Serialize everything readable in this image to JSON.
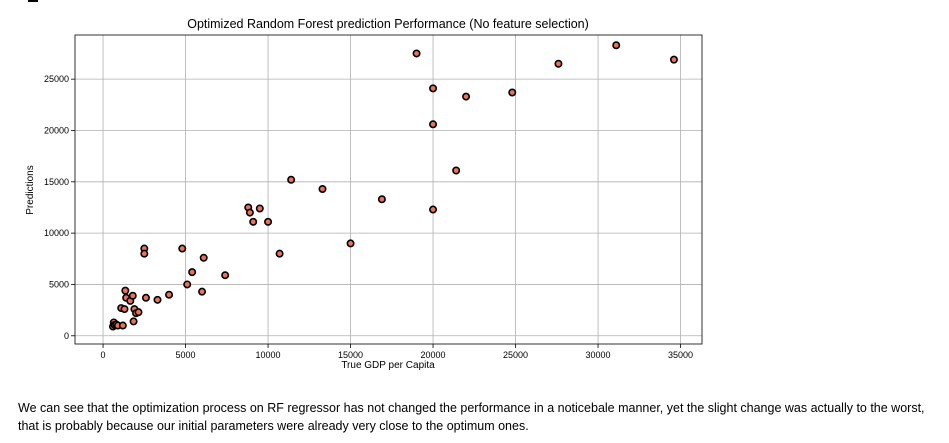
{
  "chart_data": {
    "type": "scatter",
    "title": "Optimized Random Forest prediction Performance (No feature selection)",
    "xlabel": "True GDP per Capita",
    "ylabel": "Predictions",
    "xlim": [
      -1700,
      36300
    ],
    "ylim": [
      -800,
      29300
    ],
    "xticks": [
      0,
      5000,
      10000,
      15000,
      20000,
      25000,
      30000,
      35000
    ],
    "yticks": [
      0,
      5000,
      10000,
      15000,
      20000,
      25000
    ],
    "grid": true,
    "marker_face": "#e8735a",
    "marker_edge": "#000000",
    "points": [
      {
        "x": 600,
        "y": 900
      },
      {
        "x": 650,
        "y": 1300
      },
      {
        "x": 700,
        "y": 1050
      },
      {
        "x": 800,
        "y": 1100
      },
      {
        "x": 900,
        "y": 1000
      },
      {
        "x": 1100,
        "y": 2700
      },
      {
        "x": 1200,
        "y": 1000
      },
      {
        "x": 1300,
        "y": 2600
      },
      {
        "x": 1350,
        "y": 4400
      },
      {
        "x": 1400,
        "y": 3700
      },
      {
        "x": 1650,
        "y": 3400
      },
      {
        "x": 1800,
        "y": 3900
      },
      {
        "x": 1850,
        "y": 1400
      },
      {
        "x": 1900,
        "y": 2600
      },
      {
        "x": 2000,
        "y": 2200
      },
      {
        "x": 2150,
        "y": 2300
      },
      {
        "x": 2500,
        "y": 8500
      },
      {
        "x": 2500,
        "y": 8000
      },
      {
        "x": 2600,
        "y": 3700
      },
      {
        "x": 3300,
        "y": 3500
      },
      {
        "x": 4000,
        "y": 4000
      },
      {
        "x": 4800,
        "y": 8500
      },
      {
        "x": 5100,
        "y": 5000
      },
      {
        "x": 5400,
        "y": 6200
      },
      {
        "x": 6000,
        "y": 4300
      },
      {
        "x": 6100,
        "y": 7600
      },
      {
        "x": 7400,
        "y": 5900
      },
      {
        "x": 8800,
        "y": 12500
      },
      {
        "x": 8900,
        "y": 12000
      },
      {
        "x": 9100,
        "y": 11100
      },
      {
        "x": 9500,
        "y": 12400
      },
      {
        "x": 10000,
        "y": 11100
      },
      {
        "x": 10700,
        "y": 8000
      },
      {
        "x": 11400,
        "y": 15200
      },
      {
        "x": 13300,
        "y": 14300
      },
      {
        "x": 15000,
        "y": 9000
      },
      {
        "x": 16900,
        "y": 13300
      },
      {
        "x": 19000,
        "y": 27500
      },
      {
        "x": 20000,
        "y": 24100
      },
      {
        "x": 20000,
        "y": 20600
      },
      {
        "x": 20000,
        "y": 12300
      },
      {
        "x": 21400,
        "y": 16100
      },
      {
        "x": 22000,
        "y": 23300
      },
      {
        "x": 24800,
        "y": 23700
      },
      {
        "x": 27600,
        "y": 26500
      },
      {
        "x": 31100,
        "y": 28300
      },
      {
        "x": 34600,
        "y": 26900
      }
    ]
  },
  "caption": "We can see that the optimization process on RF regressor has not changed the performance in a noticebale manner, yet the slight change was actually to the worst, that is probably because our initial parameters were already very close to the optimum ones."
}
